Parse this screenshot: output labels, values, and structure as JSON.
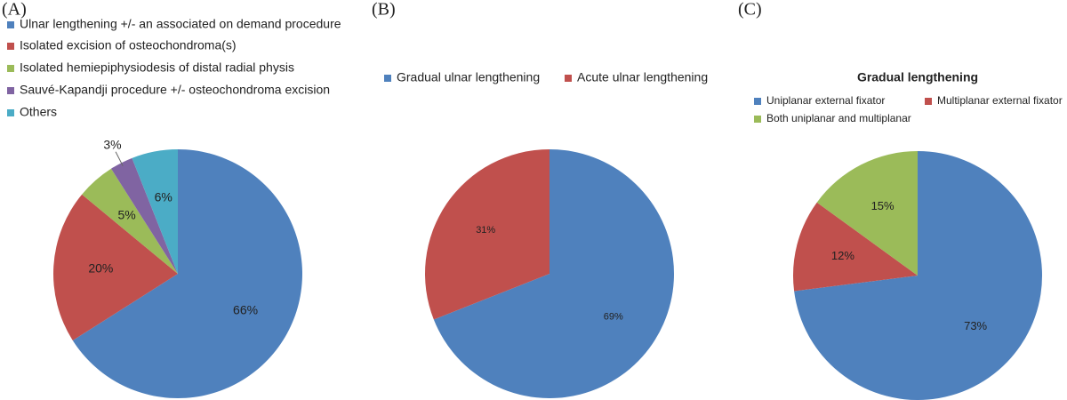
{
  "chart_data": [
    {
      "type": "pie",
      "panel": "(A)",
      "categories": [
        "Ulnar lengthening +/- an associated on demand procedure",
        "Isolated excision of osteochondroma(s)",
        "Isolated  hemiepiphysiodesis of distal radial physis",
        "Sauvé-Kapandji procedure +/- osteochondroma excision",
        "Others"
      ],
      "values": [
        66,
        20,
        5,
        3,
        6
      ],
      "value_labels": [
        "66%",
        "20%",
        "5%",
        "3%",
        "6%"
      ],
      "colors": [
        "#4f81bd",
        "#c0504d",
        "#9bbb59",
        "#8064a2",
        "#4bacc6"
      ],
      "legend": "top-left"
    },
    {
      "type": "pie",
      "panel": "(B)",
      "categories": [
        "Gradual ulnar lengthening",
        "Acute ulnar lengthening"
      ],
      "values": [
        69,
        31
      ],
      "value_labels": [
        "69%",
        "31%"
      ],
      "colors": [
        "#4f81bd",
        "#c0504d"
      ],
      "legend": "top"
    },
    {
      "type": "pie",
      "panel": "(C)",
      "title": "Gradual lengthening",
      "categories": [
        "Uniplanar external fixator",
        "Multiplanar external fixator",
        "Both uniplanar and multiplanar"
      ],
      "values": [
        73,
        12,
        15
      ],
      "value_labels": [
        "73%",
        "12%",
        "15%"
      ],
      "colors": [
        "#4f81bd",
        "#c0504d",
        "#9bbb59"
      ],
      "legend": "top"
    }
  ]
}
